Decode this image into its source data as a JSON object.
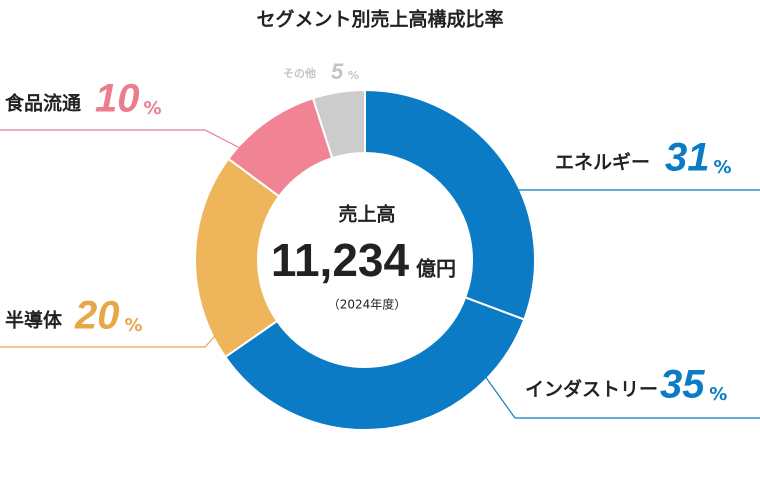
{
  "chart_data": {
    "type": "donut",
    "title": "セグメント別売上高構成比率",
    "categories": [
      "エネルギー",
      "インダストリー",
      "半導体",
      "食品流通",
      "その他"
    ],
    "values": [
      31,
      35,
      20,
      10,
      5
    ],
    "colors": [
      "#0a7bc4",
      "#0a7bc4",
      "#eeb55a",
      "#f08494",
      "#cccccc"
    ],
    "label_colors": [
      "#0a7bc4",
      "#0a7bc4",
      "#e8a84a",
      "#ea7d8e",
      "#c4c4c4"
    ],
    "unit": "%",
    "center_title": "売上高",
    "total": {
      "value": 11234,
      "label": "11,234"
    },
    "total_unit": "億円",
    "center_note": "（2024年度）"
  }
}
